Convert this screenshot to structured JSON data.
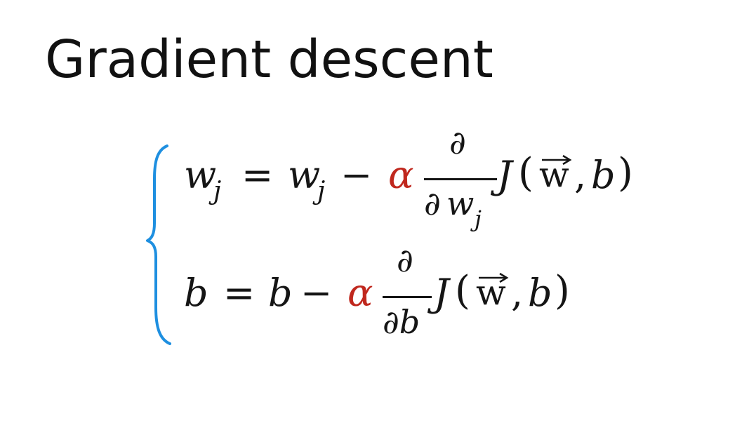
{
  "slide": {
    "title": "Gradient descent"
  },
  "equation_w": {
    "lhs_var": "w",
    "lhs_sub": "j",
    "equals": "=",
    "rhs_var": "w",
    "rhs_sub": "j",
    "minus": "−",
    "alpha": "α",
    "partial_num": "∂",
    "partial_den_sym": "∂",
    "partial_den_var": "w",
    "partial_den_sub": "j",
    "cost_fn": "J",
    "open_paren": "(",
    "vec_symbol": "w",
    "comma": ",",
    "bias": "b",
    "close_paren": ")"
  },
  "equation_b": {
    "lhs_var": "b",
    "equals": "=",
    "rhs_var": "b",
    "minus": "−",
    "alpha": "α",
    "partial_num": "∂",
    "partial_den": "∂b",
    "cost_fn": "J",
    "open_paren": "(",
    "vec_symbol": "w",
    "comma": ",",
    "bias": "b",
    "close_paren": ")"
  },
  "colors": {
    "title": "#111111",
    "math_text": "#151515",
    "learning_rate": "#c0281e",
    "brace": "#1e8fe0"
  },
  "icons": {
    "brace": "left-curly-brace-icon",
    "vector_arrow": "vector-arrow-icon"
  }
}
